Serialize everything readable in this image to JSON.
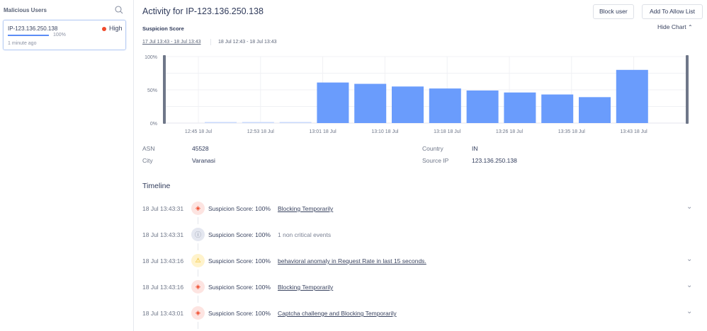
{
  "sidebar": {
    "title": "Malicious Users",
    "users": [
      {
        "ip": "IP-123.136.250.138",
        "severity": "High",
        "score_pct": "100%",
        "score": 100,
        "last_seen": "1 minute ago"
      }
    ]
  },
  "header": {
    "title": "Activity for IP-123.136.250.138",
    "block_label": "Block user",
    "allow_label": "Add To Allow List"
  },
  "chart_section": {
    "title": "Suspicion Score",
    "hide_label": "Hide Chart",
    "ranges": [
      "17 Jul 13:43 - 18 Jul 13:43",
      "18 Jul 12:43 - 18 Jul 13:43"
    ]
  },
  "chart_data": {
    "type": "bar",
    "ylabel": "Suspicion Score",
    "ylim": [
      0,
      100
    ],
    "yticks": [
      "0%",
      "50%",
      "100%"
    ],
    "xticks": [
      "12:45 18 Jul",
      "12:53 18 Jul",
      "13:01 18 Jul",
      "13:10 18 Jul",
      "13:18 18 Jul",
      "13:26 18 Jul",
      "13:35 18 Jul",
      "13:43 18 Jul"
    ],
    "values": [
      1,
      1,
      1,
      61,
      59,
      55,
      52,
      49,
      46,
      43,
      39,
      80
    ]
  },
  "details": {
    "asn_label": "ASN",
    "asn": "45528",
    "city_label": "City",
    "city": "Varanasi",
    "country_label": "Country",
    "country": "IN",
    "source_ip_label": "Source IP",
    "source_ip": "123.136.250.138"
  },
  "timeline": {
    "title": "Timeline",
    "events": [
      {
        "time": "18 Jul 13:43:31",
        "type": "block",
        "score": "Suspicion Score: 100%",
        "desc": "Blocking Temporarily"
      },
      {
        "time": "18 Jul 13:43:31",
        "type": "info",
        "score": "Suspicion Score: 100%",
        "desc": "1 non critical events"
      },
      {
        "time": "18 Jul 13:43:16",
        "type": "warning",
        "score": "Suspicion Score: 100%",
        "desc": "behavioral anomaly in Request Rate in last 15 seconds."
      },
      {
        "time": "18 Jul 13:43:16",
        "type": "block",
        "score": "Suspicion Score: 100%",
        "desc": "Blocking Temporarily"
      },
      {
        "time": "18 Jul 13:43:01",
        "type": "block",
        "score": "Suspicion Score: 100%",
        "desc": "Captcha challenge and Blocking Temporarily"
      }
    ]
  },
  "colors": {
    "bar": "#6a9cfc",
    "bar_light": "#c9dafc",
    "high": "#f04a2b"
  }
}
